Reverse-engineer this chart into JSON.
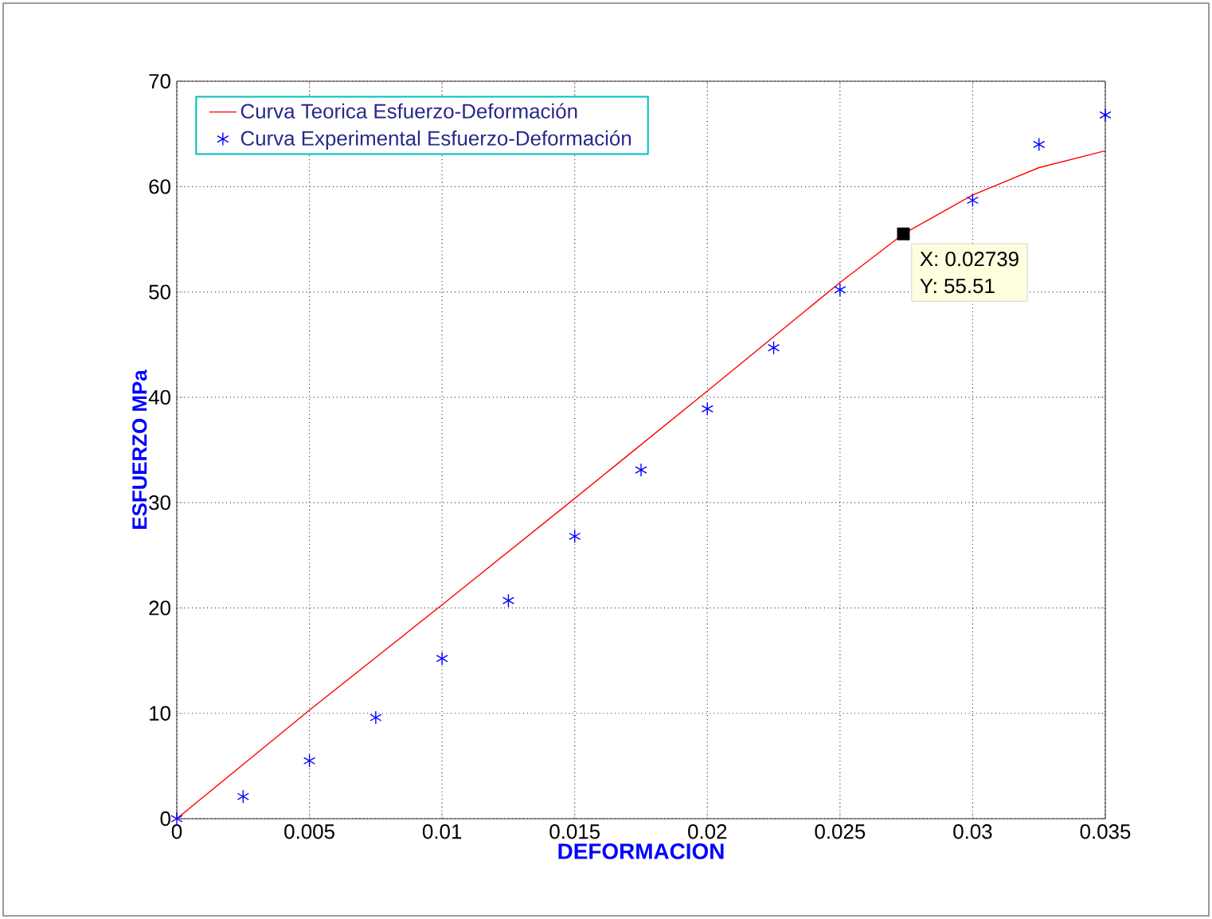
{
  "chart_data": {
    "type": "line",
    "xlabel": "DEFORMACION",
    "ylabel": "ESFUERZO MPa",
    "xlim": [
      0,
      0.035
    ],
    "ylim": [
      0,
      70
    ],
    "xticks": [
      0,
      0.005,
      0.01,
      0.015,
      0.02,
      0.025,
      0.03,
      0.035
    ],
    "yticks": [
      0,
      10,
      20,
      30,
      40,
      50,
      60,
      70
    ],
    "grid": true,
    "legend": "top left",
    "series": [
      {
        "name": "Curva Teorica Esfuerzo-Deformación",
        "color": "#ff0000",
        "marker": "none",
        "x": [
          0,
          0.005,
          0.01,
          0.015,
          0.02,
          0.025,
          0.02739,
          0.03,
          0.0325,
          0.035
        ],
        "values": [
          0,
          10.3,
          20.3,
          30.4,
          40.6,
          50.9,
          55.51,
          59.2,
          61.8,
          63.4
        ]
      },
      {
        "name": "Curva Experimental Esfuerzo-Deformación",
        "type": "scatter",
        "color": "#0000ff",
        "marker": "cross",
        "x": [
          0,
          0.0025,
          0.005,
          0.0075,
          0.01,
          0.0125,
          0.015,
          0.0175,
          0.02,
          0.0225,
          0.025,
          0.0275,
          0.03,
          0.0325,
          0.035
        ],
        "values": [
          0,
          2.1,
          5.5,
          9.6,
          15.2,
          20.7,
          26.8,
          33.1,
          38.9,
          44.7,
          50.2,
          null,
          58.7,
          64.0,
          66.8
        ]
      }
    ],
    "annotations": [
      {
        "text": "X: 0.02739",
        "x": 0.02739,
        "y": 55.51
      },
      "Y: 55.51"
    ]
  }
}
